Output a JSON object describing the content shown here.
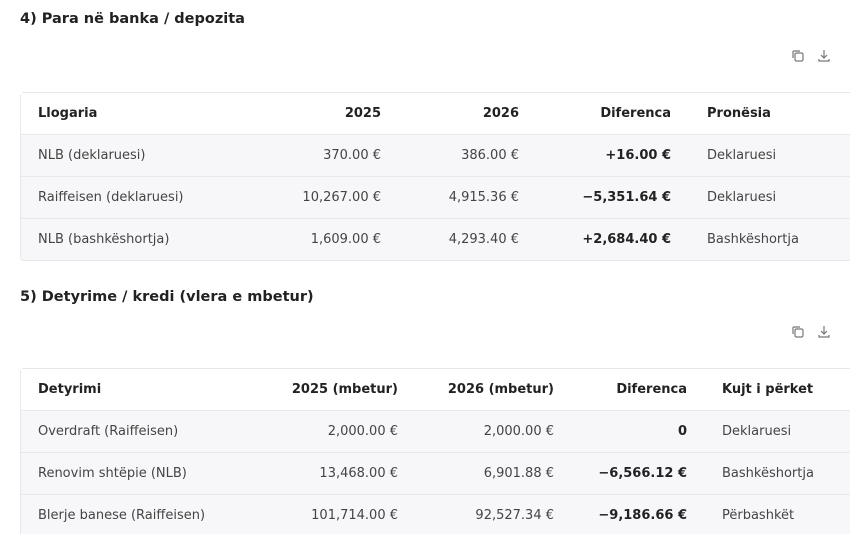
{
  "sections": [
    {
      "title": "4) Para në banka / depozita",
      "table": {
        "header": [
          "Llogaria",
          "2025",
          "2026",
          "Diferenca",
          "Pronësia"
        ],
        "rows": [
          [
            "NLB (deklaruesi)",
            "370.00 €",
            "386.00 €",
            "+16.00 €",
            "Deklaruesi"
          ],
          [
            "Raiffeisen (deklaruesi)",
            "10,267.00 €",
            "4,915.36 €",
            "−5,351.64 €",
            "Deklaruesi"
          ],
          [
            "NLB (bashkëshortja)",
            "1,609.00 €",
            "4,293.40 €",
            "+2,684.40 €",
            "Bashkëshortja"
          ]
        ]
      }
    },
    {
      "title": "5) Detyrime / kredi (vlera e mbetur)",
      "table": {
        "header": [
          "Detyrimi",
          "2025 (mbetur)",
          "2026 (mbetur)",
          "Diferenca",
          "Kujt i përket"
        ],
        "rows": [
          [
            "Overdraft (Raiffeisen)",
            "2,000.00 €",
            "2,000.00 €",
            "0",
            "Deklaruesi"
          ],
          [
            "Renovim shtëpie (NLB)",
            "13,468.00 €",
            "6,901.88 €",
            "−6,566.12 €",
            "Bashkëshortja"
          ],
          [
            "Blerje banese (Raiffeisen)",
            "101,714.00 €",
            "92,527.34 €",
            "−9,186.66 €",
            "Përbashkët"
          ]
        ]
      }
    }
  ]
}
